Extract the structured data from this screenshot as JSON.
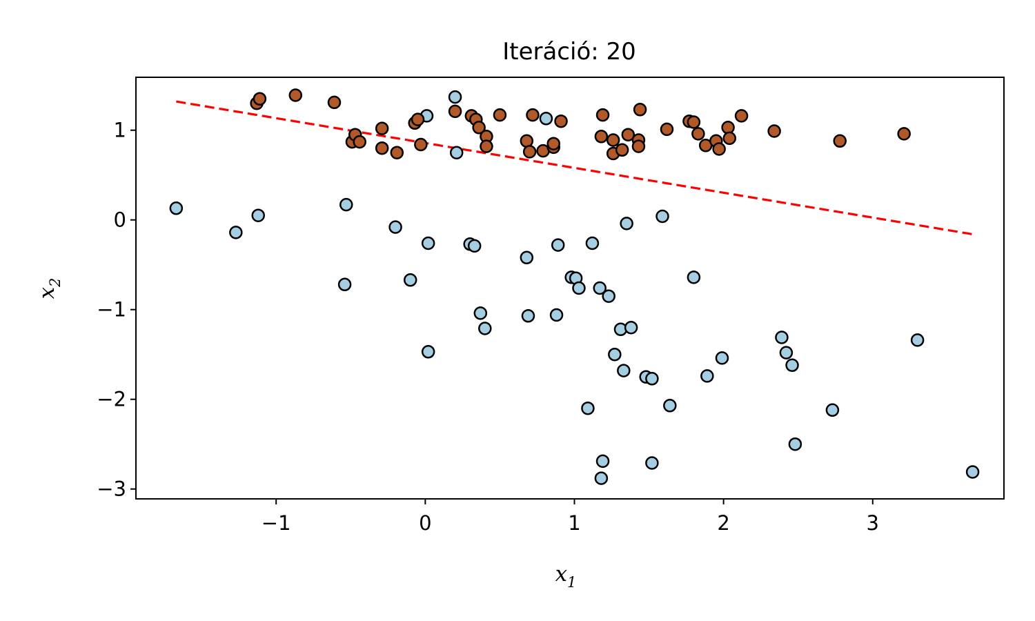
{
  "chart_data": {
    "type": "scatter",
    "title": "Iteráció: 20",
    "xlabel": "x",
    "xlabel_sub": "1",
    "ylabel": "x",
    "ylabel_sub": "2",
    "xlim": [
      -1.94,
      3.88
    ],
    "ylim": [
      -3.11,
      1.59
    ],
    "xticks": [
      -1,
      0,
      1,
      2,
      3
    ],
    "yticks": [
      1,
      0,
      -1,
      -2,
      -3
    ],
    "tick_labels": {
      "x": [
        "−1",
        "0",
        "1",
        "2",
        "3"
      ],
      "y": [
        "1",
        "0",
        "−1",
        "−2",
        "−3"
      ]
    },
    "grid": false,
    "colors": {
      "class_0": "#a6cee3",
      "class_1": "#b15928",
      "edge": "#000000",
      "boundary": "#ff0000"
    },
    "series": [
      {
        "class": "class_0",
        "points": [
          [
            -1.67,
            0.13
          ],
          [
            -1.27,
            -0.14
          ],
          [
            -1.12,
            0.05
          ],
          [
            -0.53,
            0.17
          ],
          [
            -0.2,
            -0.08
          ],
          [
            -0.54,
            -0.72
          ],
          [
            -0.1,
            -0.67
          ],
          [
            0.02,
            -0.26
          ],
          [
            0.3,
            -0.27
          ],
          [
            0.33,
            -0.29
          ],
          [
            0.02,
            -1.47
          ],
          [
            0.37,
            -1.04
          ],
          [
            0.4,
            -1.21
          ],
          [
            0.2,
            1.37
          ],
          [
            0.01,
            1.16
          ],
          [
            0.21,
            0.75
          ],
          [
            0.68,
            -0.42
          ],
          [
            0.69,
            -1.07
          ],
          [
            0.81,
            1.13
          ],
          [
            0.89,
            -0.28
          ],
          [
            0.88,
            -1.06
          ],
          [
            0.98,
            -0.64
          ],
          [
            1.01,
            -0.65
          ],
          [
            1.03,
            -0.76
          ],
          [
            1.12,
            -0.26
          ],
          [
            1.17,
            -0.76
          ],
          [
            1.23,
            -0.85
          ],
          [
            1.09,
            -2.1
          ],
          [
            1.19,
            -2.69
          ],
          [
            1.18,
            -2.88
          ],
          [
            1.27,
            -1.5
          ],
          [
            1.31,
            -1.22
          ],
          [
            1.38,
            -1.2
          ],
          [
            1.33,
            -1.68
          ],
          [
            1.35,
            -0.04
          ],
          [
            1.48,
            -1.75
          ],
          [
            1.52,
            -1.77
          ],
          [
            1.52,
            -2.71
          ],
          [
            1.59,
            0.04
          ],
          [
            1.64,
            -2.07
          ],
          [
            1.8,
            -0.64
          ],
          [
            1.89,
            -1.74
          ],
          [
            1.99,
            -1.54
          ],
          [
            2.39,
            -1.31
          ],
          [
            2.42,
            -1.48
          ],
          [
            2.46,
            -1.62
          ],
          [
            2.48,
            -2.5
          ],
          [
            2.73,
            -2.12
          ],
          [
            3.3,
            -1.34
          ],
          [
            3.67,
            -2.81
          ]
        ]
      },
      {
        "class": "class_1",
        "points": [
          [
            -1.13,
            1.3
          ],
          [
            -1.11,
            1.35
          ],
          [
            -0.87,
            1.39
          ],
          [
            -0.61,
            1.31
          ],
          [
            -0.49,
            0.87
          ],
          [
            -0.47,
            0.95
          ],
          [
            -0.44,
            0.87
          ],
          [
            -0.29,
            1.02
          ],
          [
            -0.29,
            0.8
          ],
          [
            -0.19,
            0.75
          ],
          [
            -0.07,
            1.08
          ],
          [
            -0.05,
            1.12
          ],
          [
            -0.03,
            0.84
          ],
          [
            0.2,
            1.21
          ],
          [
            0.31,
            1.16
          ],
          [
            0.34,
            1.12
          ],
          [
            0.36,
            1.03
          ],
          [
            0.41,
            0.93
          ],
          [
            0.41,
            0.82
          ],
          [
            0.5,
            1.17
          ],
          [
            0.68,
            0.88
          ],
          [
            0.7,
            0.76
          ],
          [
            0.72,
            1.17
          ],
          [
            0.79,
            0.77
          ],
          [
            0.86,
            0.81
          ],
          [
            0.86,
            0.85
          ],
          [
            0.91,
            1.1
          ],
          [
            1.18,
            0.93
          ],
          [
            1.19,
            1.17
          ],
          [
            1.26,
            0.89
          ],
          [
            1.26,
            0.74
          ],
          [
            1.32,
            0.78
          ],
          [
            1.36,
            0.95
          ],
          [
            1.43,
            0.89
          ],
          [
            1.43,
            0.82
          ],
          [
            1.44,
            1.23
          ],
          [
            1.62,
            1.01
          ],
          [
            1.77,
            1.1
          ],
          [
            1.8,
            1.09
          ],
          [
            1.83,
            0.96
          ],
          [
            1.88,
            0.83
          ],
          [
            1.95,
            0.88
          ],
          [
            1.97,
            0.79
          ],
          [
            2.03,
            1.03
          ],
          [
            2.04,
            0.91
          ],
          [
            2.12,
            1.16
          ],
          [
            2.34,
            0.99
          ],
          [
            2.78,
            0.88
          ],
          [
            3.21,
            0.96
          ]
        ]
      }
    ],
    "decision_boundary": {
      "style": "dashed",
      "x": [
        -1.67,
        3.67
      ],
      "y": [
        1.32,
        -0.16
      ]
    }
  }
}
